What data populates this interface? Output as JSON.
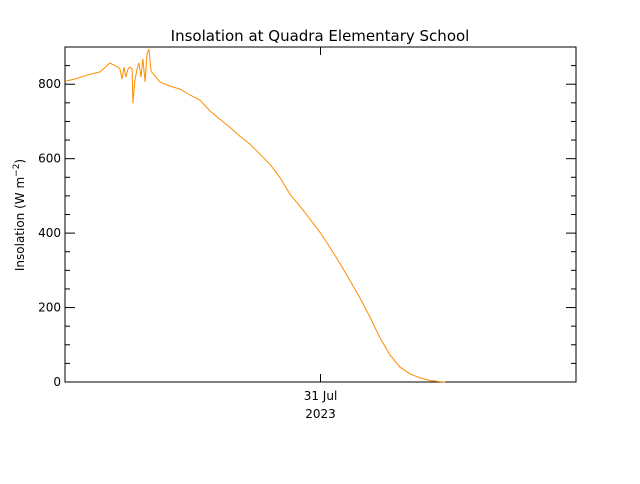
{
  "chart_data": {
    "type": "line",
    "title": "Insolation at Quadra Elementary School",
    "xlabel": "",
    "ylabel": "Insolation (W m",
    "ylabel_superscript": "−2",
    "ylabel_close": ")",
    "x_units": "hours relative to 31 Jul 2023 00:00",
    "xlim": [
      -12,
      12
    ],
    "ylim": [
      0,
      900
    ],
    "x_ticks": [
      {
        "value": 0,
        "label_line1": "31 Jul",
        "label_line2": "2023"
      }
    ],
    "y_ticks": [
      {
        "value": 0,
        "label": "0"
      },
      {
        "value": 200,
        "label": "200"
      },
      {
        "value": 400,
        "label": "400"
      },
      {
        "value": 600,
        "label": "600"
      },
      {
        "value": 800,
        "label": "800"
      }
    ],
    "y_minor_step": 50,
    "grid": false,
    "series": [
      {
        "name": "Insolation",
        "color": "#ff8c00",
        "x": [
          -12.0,
          -11.53,
          -10.8,
          -10.35,
          -9.89,
          -9.51,
          -9.42,
          -9.32,
          -9.23,
          -9.14,
          -9.04,
          -8.95,
          -8.85,
          -8.81,
          -8.72,
          -8.62,
          -8.53,
          -8.43,
          -8.34,
          -8.24,
          -8.15,
          -8.06,
          -7.96,
          -7.54,
          -7.07,
          -6.6,
          -6.13,
          -5.66,
          -5.19,
          -4.72,
          -4.25,
          -3.78,
          -3.31,
          -2.84,
          -2.37,
          -1.91,
          -1.43,
          -0.96,
          -0.49,
          -0.02,
          0.45,
          0.92,
          1.39,
          1.85,
          2.32,
          2.79,
          3.26,
          3.73,
          4.2,
          4.67,
          5.14,
          5.61,
          5.85
        ],
        "y": [
          808,
          814,
          827,
          833,
          857,
          846,
          841,
          814,
          846,
          819,
          841,
          846,
          841,
          749,
          808,
          841,
          857,
          819,
          868,
          806,
          881,
          895,
          835,
          806,
          795,
          787,
          771,
          757,
          728,
          706,
          684,
          660,
          639,
          612,
          585,
          550,
          504,
          472,
          437,
          402,
          361,
          318,
          272,
          226,
          175,
          119,
          73,
          40,
          22,
          11,
          4,
          1,
          0
        ]
      }
    ]
  }
}
